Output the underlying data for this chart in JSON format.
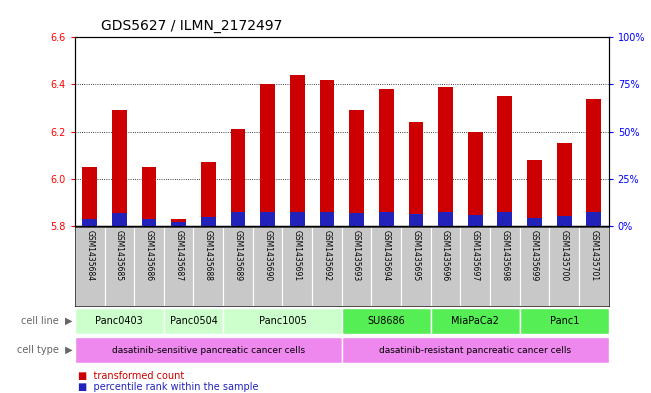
{
  "title": "GDS5627 / ILMN_2172497",
  "samples": [
    "GSM1435684",
    "GSM1435685",
    "GSM1435686",
    "GSM1435687",
    "GSM1435688",
    "GSM1435689",
    "GSM1435690",
    "GSM1435691",
    "GSM1435692",
    "GSM1435693",
    "GSM1435694",
    "GSM1435695",
    "GSM1435696",
    "GSM1435697",
    "GSM1435698",
    "GSM1435699",
    "GSM1435700",
    "GSM1435701"
  ],
  "red_values": [
    6.05,
    6.29,
    6.05,
    5.83,
    6.07,
    6.21,
    6.4,
    6.44,
    6.42,
    6.29,
    6.38,
    6.24,
    6.39,
    6.2,
    6.35,
    6.08,
    6.15,
    6.34
  ],
  "blue_values": [
    0.03,
    0.055,
    0.03,
    0.018,
    0.038,
    0.058,
    0.058,
    0.058,
    0.058,
    0.055,
    0.058,
    0.05,
    0.058,
    0.045,
    0.058,
    0.035,
    0.042,
    0.058
  ],
  "ymin": 5.8,
  "ymax": 6.6,
  "yticks": [
    5.8,
    6.0,
    6.2,
    6.4,
    6.6
  ],
  "right_yticks_pct": [
    0,
    25,
    50,
    75,
    100
  ],
  "right_ylabels": [
    "0%",
    "25%",
    "50%",
    "75%",
    "100%"
  ],
  "cell_lines": [
    {
      "label": "Panc0403",
      "start": 0,
      "end": 3,
      "color": "#ccffcc"
    },
    {
      "label": "Panc0504",
      "start": 3,
      "end": 5,
      "color": "#ccffcc"
    },
    {
      "label": "Panc1005",
      "start": 5,
      "end": 9,
      "color": "#ccffcc"
    },
    {
      "label": "SU8686",
      "start": 9,
      "end": 12,
      "color": "#55ee55"
    },
    {
      "label": "MiaPaCa2",
      "start": 12,
      "end": 15,
      "color": "#55ee55"
    },
    {
      "label": "Panc1",
      "start": 15,
      "end": 18,
      "color": "#55ee55"
    }
  ],
  "cell_type_groups": [
    {
      "label": "dasatinib-sensitive pancreatic cancer cells",
      "start": 0,
      "end": 9,
      "color": "#ee88ee"
    },
    {
      "label": "dasatinib-resistant pancreatic cancer cells",
      "start": 9,
      "end": 18,
      "color": "#ee88ee"
    }
  ],
  "bar_color": "#cc0000",
  "blue_bar_color": "#2222bb",
  "sample_bg_color": "#c8c8c8",
  "title_fontsize": 10,
  "tick_fontsize": 7,
  "sample_fontsize": 5.5,
  "cell_fontsize": 7,
  "celltype_fontsize": 6.5,
  "legend_fontsize": 7,
  "legend_red_label": "transformed count",
  "legend_blue_label": "percentile rank within the sample",
  "cell_line_row_label": "cell line",
  "cell_type_row_label": "cell type"
}
